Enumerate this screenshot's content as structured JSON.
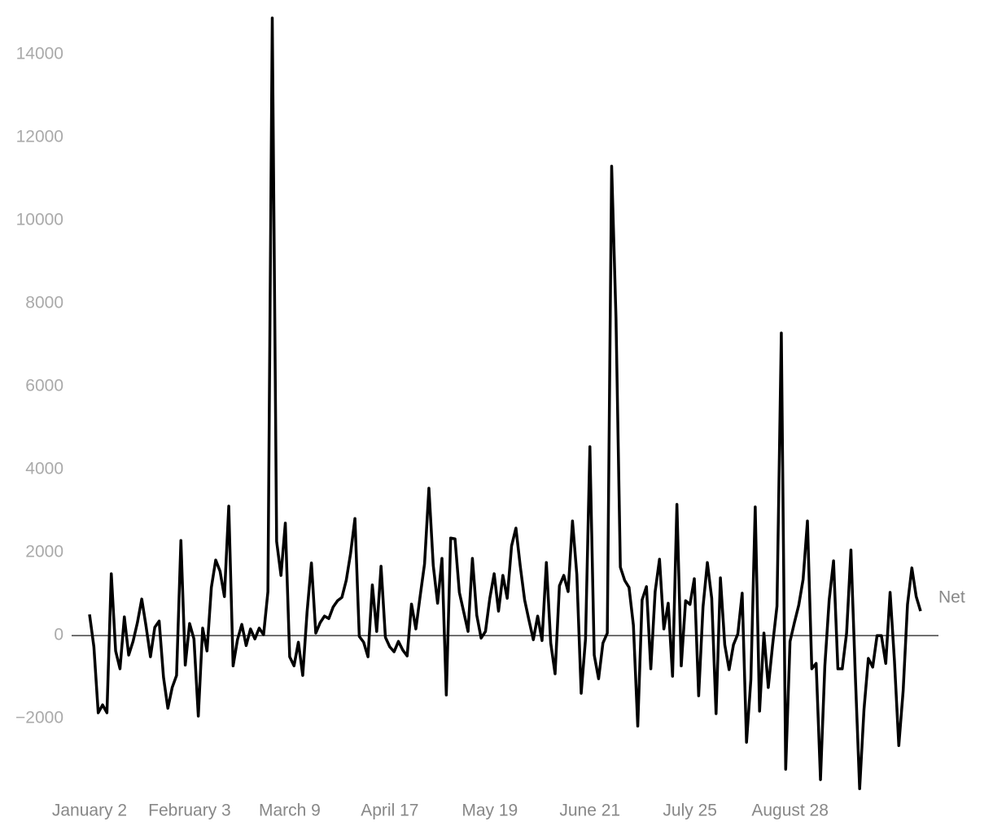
{
  "chart_data": {
    "type": "line",
    "categories": [
      "January 2",
      null,
      null,
      null,
      null,
      null,
      null,
      null,
      null,
      null,
      null,
      null,
      null,
      null,
      null,
      null,
      null,
      null,
      null,
      null,
      null,
      null,
      null,
      "February 3",
      null,
      null,
      null,
      null,
      null,
      null,
      null,
      null,
      null,
      null,
      null,
      null,
      null,
      null,
      null,
      null,
      null,
      null,
      null,
      null,
      null,
      null,
      "March 9",
      null,
      null,
      null,
      null,
      null,
      null,
      null,
      null,
      null,
      null,
      null,
      null,
      null,
      null,
      null,
      null,
      null,
      null,
      null,
      null,
      null,
      null,
      "April 17",
      null,
      null,
      null,
      null,
      null,
      null,
      null,
      null,
      null,
      null,
      null,
      null,
      null,
      null,
      null,
      null,
      null,
      null,
      null,
      null,
      null,
      null,
      "May 19",
      null,
      null,
      null,
      null,
      null,
      null,
      null,
      null,
      null,
      null,
      null,
      null,
      null,
      null,
      null,
      null,
      null,
      null,
      null,
      null,
      null,
      null,
      "June 21",
      null,
      null,
      null,
      null,
      null,
      null,
      null,
      null,
      null,
      null,
      null,
      null,
      null,
      null,
      null,
      null,
      null,
      null,
      null,
      null,
      null,
      null,
      "July 25",
      null,
      null,
      null,
      null,
      null,
      null,
      null,
      null,
      null,
      null,
      null,
      null,
      null,
      null,
      null,
      null,
      null,
      null,
      null,
      null,
      null,
      null,
      "August 28",
      null,
      null,
      null,
      null,
      null,
      null,
      null,
      null,
      null,
      null,
      null,
      null,
      null,
      null,
      null,
      null,
      null,
      null,
      null,
      null,
      null,
      null,
      null,
      null,
      null,
      null,
      null,
      null,
      null,
      null
    ],
    "series": [
      {
        "name": "Net",
        "color": "#000000",
        "values": [
          510,
          -270,
          -1860,
          -1670,
          -1860,
          1490,
          -370,
          -800,
          450,
          -470,
          -140,
          310,
          880,
          220,
          -510,
          200,
          350,
          -1000,
          -1750,
          -1250,
          -960,
          2290,
          -710,
          290,
          -80,
          -1940,
          180,
          -370,
          1160,
          1820,
          1550,
          940,
          3120,
          -730,
          -100,
          270,
          -240,
          160,
          -80,
          180,
          20,
          1060,
          14880,
          2270,
          1450,
          2710,
          -510,
          -730,
          -160,
          -960,
          570,
          1750,
          60,
          310,
          470,
          410,
          690,
          840,
          920,
          1330,
          1980,
          2820,
          -20,
          -160,
          -510,
          1220,
          100,
          1670,
          -40,
          -270,
          -390,
          -140,
          -350,
          -490,
          760,
          160,
          960,
          1730,
          3550,
          1690,
          780,
          1860,
          -1430,
          2350,
          2330,
          1040,
          570,
          100,
          1860,
          490,
          -60,
          100,
          900,
          1490,
          590,
          1450,
          900,
          2160,
          2590,
          1670,
          860,
          370,
          -100,
          470,
          -120,
          1760,
          -180,
          -920,
          1200,
          1450,
          1060,
          2760,
          1470,
          -1390,
          -80,
          4550,
          -470,
          -1040,
          -180,
          60,
          11310,
          7650,
          1650,
          1330,
          1160,
          250,
          -2180,
          860,
          1180,
          -800,
          1060,
          1840,
          160,
          780,
          -980,
          3160,
          -730,
          840,
          750,
          1370,
          -1450,
          690,
          1760,
          900,
          -1880,
          1390,
          -220,
          -820,
          -220,
          40,
          1020,
          -2570,
          -1060,
          3100,
          -1820,
          60,
          -1250,
          -220,
          710,
          7290,
          -3220,
          -140,
          310,
          730,
          1350,
          2760,
          -800,
          -670,
          -3470,
          -730,
          860,
          1800,
          -800,
          -800,
          60,
          2060,
          -940,
          -3690,
          -1780,
          -550,
          -760,
          0,
          0,
          -670,
          1040,
          -610,
          -2650,
          -1330,
          750,
          1630,
          940,
          590
        ]
      }
    ],
    "ylim": [
      -3900,
      15000
    ],
    "yticks": [
      {
        "value": -2000,
        "label": "−2000"
      },
      0,
      2000,
      4000,
      6000,
      8000,
      10000,
      12000,
      14000
    ],
    "grid": false
  }
}
